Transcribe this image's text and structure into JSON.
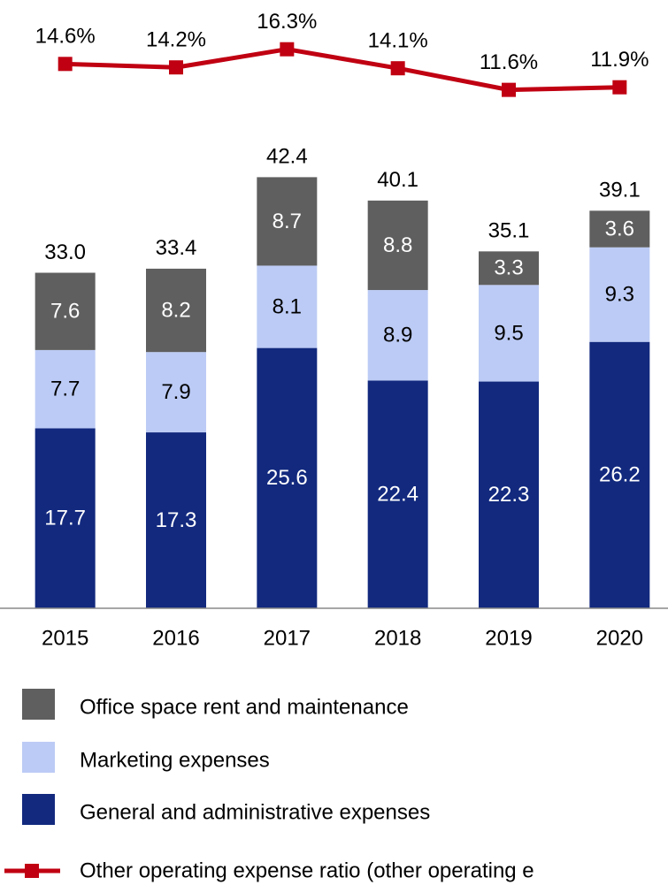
{
  "chart_data": {
    "type": "bar",
    "stacked": true,
    "categories": [
      "2015",
      "2016",
      "2017",
      "2018",
      "2019",
      "2020"
    ],
    "series": [
      {
        "name": "General and administrative expenses",
        "color": "#12297e",
        "label_color": "#ffffff",
        "values": [
          17.7,
          17.3,
          25.6,
          22.4,
          22.3,
          26.2
        ]
      },
      {
        "name": "Marketing expenses",
        "color": "#bccbf5",
        "label_color": "#000000",
        "values": [
          7.7,
          7.9,
          8.1,
          8.9,
          9.5,
          9.3
        ]
      },
      {
        "name": "Office space rent and maintenance",
        "color": "#5f5f5f",
        "label_color": "#ffffff",
        "values": [
          7.6,
          8.2,
          8.7,
          8.8,
          3.3,
          3.6
        ]
      },
      {
        "name": "Other operating expense ratio (other operating e",
        "type": "line",
        "axis": "y2",
        "color": "#c00012",
        "values": [
          14.6,
          14.2,
          16.3,
          14.1,
          11.6,
          11.9
        ],
        "value_labels": [
          "14.6%",
          "14.2%",
          "16.3%",
          "14.1%",
          "11.6%",
          "11.9%"
        ]
      }
    ],
    "totals": {
      "values": [
        33.0,
        33.4,
        42.4,
        40.1,
        35.1,
        39.1
      ],
      "value_labels": [
        "33.0",
        "33.4",
        "42.4",
        "40.1",
        "35.1",
        "39.1"
      ]
    },
    "ylim": [
      0,
      50
    ],
    "y2lim": [
      0,
      22
    ]
  }
}
